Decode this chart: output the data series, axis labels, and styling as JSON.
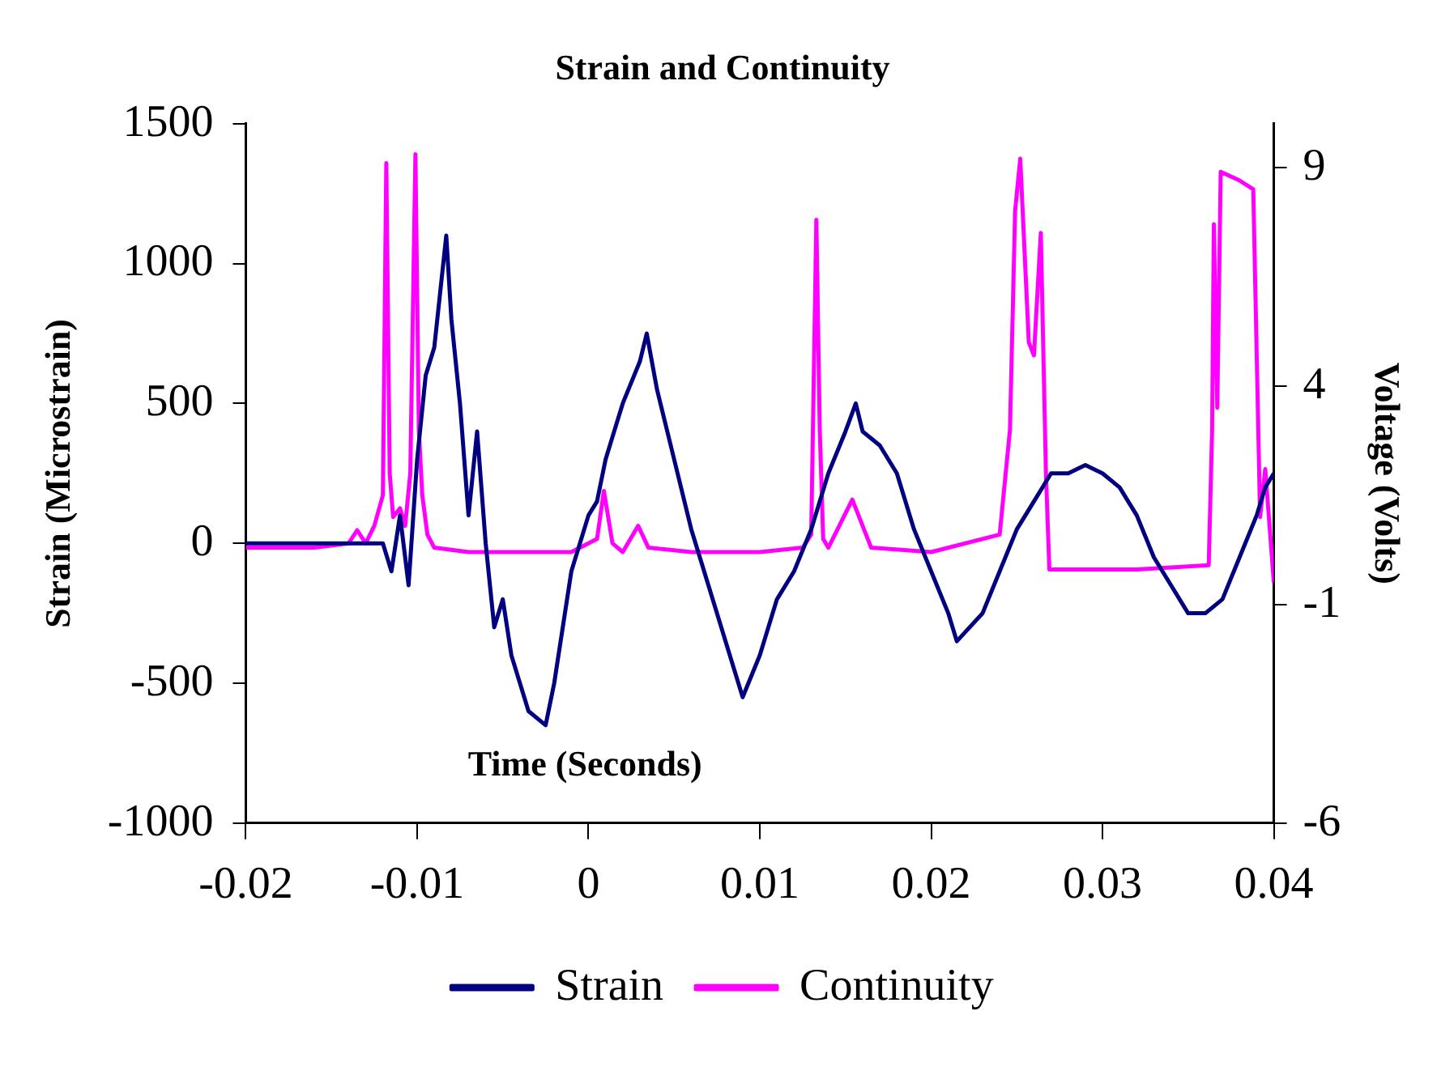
{
  "chart_data": {
    "type": "line",
    "title": "Strain and Continuity",
    "xlabel": "Time (Seconds)",
    "ylabel": "Strain (Microstrain)",
    "y2label": "Voltage (Volts)",
    "xlim": [
      -0.02,
      0.04
    ],
    "xticks": [
      -0.02,
      -0.01,
      0,
      0.01,
      0.02,
      0.03,
      0.04
    ],
    "ylim": [
      -1000,
      1500
    ],
    "yticks": [
      -1000,
      -500,
      0,
      500,
      1000,
      1500
    ],
    "y2lim": [
      -6,
      10
    ],
    "y2ticks": [
      -6,
      -1,
      4,
      9
    ],
    "legend": "bottom",
    "grid": false,
    "marker": "none",
    "line_style": "solid",
    "series": [
      {
        "name": "Strain",
        "color": "#000080",
        "x": [
          -0.02,
          -0.018,
          -0.016,
          -0.014,
          -0.013,
          -0.012,
          -0.0115,
          -0.011,
          -0.0105,
          -0.01,
          -0.0095,
          -0.009,
          -0.0083,
          -0.008,
          -0.0075,
          -0.007,
          -0.0065,
          -0.006,
          -0.0055,
          -0.005,
          -0.0045,
          -0.004,
          -0.0035,
          -0.0025,
          -0.002,
          -0.0015,
          -0.001,
          -0.0005,
          0,
          0.0005,
          0.001,
          0.002,
          0.003,
          0.0034,
          0.004,
          0.005,
          0.006,
          0.007,
          0.008,
          0.009,
          0.01,
          0.011,
          0.012,
          0.013,
          0.014,
          0.015,
          0.0156,
          0.016,
          0.017,
          0.018,
          0.019,
          0.02,
          0.021,
          0.0215,
          0.023,
          0.024,
          0.025,
          0.026,
          0.027,
          0.028,
          0.029,
          0.03,
          0.031,
          0.032,
          0.033,
          0.034,
          0.035,
          0.036,
          0.037,
          0.038,
          0.039,
          0.0395,
          0.04
        ],
        "values": [
          0,
          0,
          0,
          0,
          0,
          0,
          -100,
          100,
          -150,
          300,
          600,
          700,
          1100,
          800,
          500,
          100,
          400,
          0,
          -300,
          -200,
          -400,
          -500,
          -600,
          -650,
          -500,
          -300,
          -100,
          0,
          100,
          150,
          300,
          500,
          650,
          750,
          550,
          300,
          50,
          -150,
          -350,
          -550,
          -400,
          -200,
          -100,
          50,
          250,
          400,
          500,
          400,
          350,
          250,
          50,
          -100,
          -250,
          -350,
          -250,
          -100,
          50,
          150,
          250,
          250,
          280,
          250,
          200,
          100,
          -50,
          -150,
          -250,
          -250,
          -200,
          -50,
          100,
          200,
          250
        ]
      },
      {
        "name": "Continuity",
        "color": "#ff00ff",
        "axis": "y2",
        "x": [
          -0.02,
          -0.016,
          -0.014,
          -0.0135,
          -0.013,
          -0.0125,
          -0.012,
          -0.0118,
          -0.0116,
          -0.0114,
          -0.011,
          -0.0107,
          -0.0104,
          -0.0101,
          -0.0099,
          -0.0097,
          -0.0094,
          -0.009,
          -0.007,
          -0.004,
          -0.001,
          0.0005,
          0.0009,
          0.0014,
          0.002,
          0.0029,
          0.0035,
          0.006,
          0.01,
          0.0125,
          0.013,
          0.0133,
          0.0135,
          0.0137,
          0.014,
          0.0154,
          0.0165,
          0.02,
          0.024,
          0.0246,
          0.0249,
          0.0252,
          0.0257,
          0.026,
          0.0264,
          0.0267,
          0.0269,
          0.028,
          0.032,
          0.0362,
          0.0364,
          0.0365,
          0.0367,
          0.0369,
          0.038,
          0.0388,
          0.0392,
          0.0395,
          0.04
        ],
        "values": [
          0.3,
          0.3,
          0.4,
          0.7,
          0.4,
          0.8,
          1.5,
          9.1,
          2,
          1,
          1.2,
          0.8,
          2,
          9.3,
          3,
          1.5,
          0.6,
          0.3,
          0.2,
          0.2,
          0.2,
          0.5,
          1.6,
          0.4,
          0.2,
          0.8,
          0.3,
          0.2,
          0.2,
          0.3,
          0.6,
          7.8,
          3,
          0.5,
          0.3,
          1.4,
          0.3,
          0.2,
          0.6,
          3,
          8,
          9.2,
          5,
          4.7,
          7.5,
          2,
          -0.2,
          -0.2,
          -0.2,
          -0.1,
          3,
          7.7,
          3.5,
          8.9,
          8.7,
          8.5,
          1,
          2.1,
          -0.5
        ]
      }
    ]
  }
}
